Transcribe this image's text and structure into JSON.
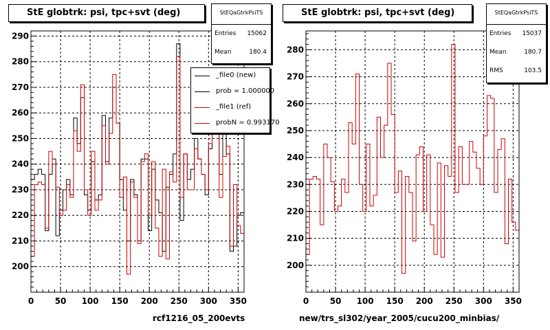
{
  "footer_text": "",
  "chart_data": [
    {
      "type": "line",
      "title": "StE globtrk: psi, tpc+svt (deg)",
      "xlabel": "rcf1216_05_200evts",
      "ylabel": "",
      "xlim": [
        0,
        360
      ],
      "ylim": [
        190,
        292
      ],
      "x_ticks": [
        0,
        50,
        100,
        150,
        200,
        250,
        300,
        350
      ],
      "y_ticks": [
        200,
        210,
        220,
        230,
        240,
        250,
        260,
        270,
        280,
        290
      ],
      "grid": true,
      "bin_width": 6,
      "stats": {
        "name": "StEQaGtrkPsiTS",
        "rows": [
          {
            "label": "Entries",
            "value": "15062"
          },
          {
            "label": "Mean",
            "value": "180.4"
          }
        ]
      },
      "legend": [
        {
          "label": "_file0 (new)",
          "color": "#000000"
        },
        {
          "label": "prob = 1.000000",
          "color": "#000000"
        },
        {
          "label": "_file1 (ref)",
          "color": "#cc0000"
        },
        {
          "label": "probN = 0.993170",
          "color": "#cc0000"
        }
      ],
      "series": [
        {
          "name": "_file0 (new)",
          "color": "#000000",
          "values": [
            234,
            236,
            238,
            236,
            214,
            236,
            242,
            212,
            222,
            230,
            234,
            228,
            258,
            248,
            266,
            228,
            222,
            241,
            226,
            228,
            259,
            241,
            258,
            270,
            256,
            234,
            222,
            210,
            234,
            228,
            210,
            242,
            242,
            214,
            238,
            226,
            221,
            206,
            231,
            236,
            244,
            287,
            218,
            244,
            234,
            238,
            250,
            242,
            236,
            228,
            246,
            264,
            256,
            236,
            254,
            244,
            206,
            208,
            220,
            221
          ]
        },
        {
          "name": "_file1 (ref)",
          "color": "#cc0000",
          "values": [
            204,
            232,
            233,
            232,
            215,
            245,
            240,
            231,
            220,
            222,
            232,
            227,
            253,
            245,
            271,
            230,
            220,
            245,
            222,
            226,
            255,
            240,
            252,
            275,
            256,
            227,
            235,
            197,
            233,
            227,
            209,
            241,
            244,
            220,
            241,
            215,
            204,
            238,
            203,
            237,
            233,
            282,
            227,
            244,
            230,
            230,
            246,
            242,
            236,
            230,
            248,
            263,
            262,
            227,
            243,
            247,
            208,
            232,
            216,
            213
          ]
        }
      ]
    },
    {
      "type": "line",
      "title": "StE globtrk: psi, tpc+svt (deg)",
      "xlabel": "new/trs_sl302/year_2005/cucu200_minbias/",
      "ylabel": "",
      "xlim": [
        0,
        360
      ],
      "ylim": [
        190,
        287
      ],
      "x_ticks": [
        0,
        50,
        100,
        150,
        200,
        250,
        300,
        350
      ],
      "y_ticks": [
        200,
        210,
        220,
        230,
        240,
        250,
        260,
        270,
        280
      ],
      "grid": true,
      "bin_width": 6,
      "stats": {
        "name": "StEQaGtrkPsiTS",
        "rows": [
          {
            "label": "Entries",
            "value": "15037"
          },
          {
            "label": "Mean",
            "value": "180.7"
          },
          {
            "label": "RMS",
            "value": "103.5"
          }
        ]
      },
      "series": [
        {
          "name": "_file1 (ref)",
          "color": "#cc0000",
          "values": [
            204,
            232,
            233,
            232,
            215,
            245,
            240,
            231,
            220,
            222,
            232,
            227,
            253,
            245,
            271,
            230,
            220,
            245,
            222,
            226,
            255,
            240,
            252,
            275,
            256,
            227,
            235,
            197,
            233,
            227,
            209,
            241,
            244,
            220,
            241,
            215,
            204,
            238,
            203,
            237,
            233,
            282,
            227,
            244,
            230,
            230,
            246,
            242,
            236,
            230,
            248,
            263,
            262,
            227,
            243,
            247,
            208,
            232,
            216,
            213
          ]
        }
      ]
    }
  ]
}
